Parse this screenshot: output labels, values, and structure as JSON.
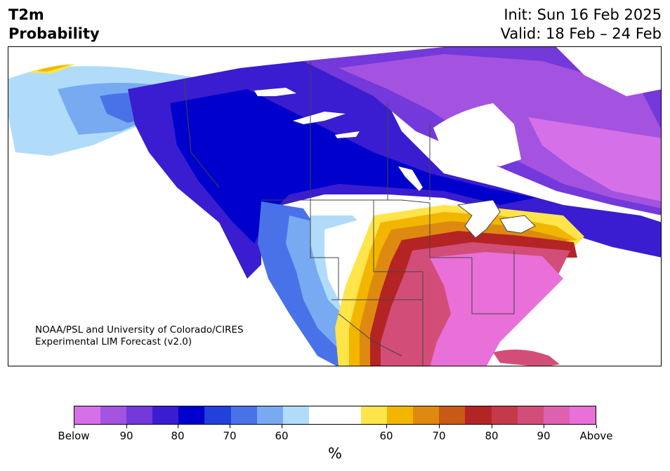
{
  "header": {
    "variable": "T2m",
    "product": "Probability",
    "init": "Init: Sun 16 Feb 2025",
    "valid": "Valid: 18 Feb – 24 Feb"
  },
  "map": {
    "credit_line1": "NOAA/PSL and University of Colorado/CIRES",
    "credit_line2": "Experimental LIM Forecast (v2.0)"
  },
  "colorbar": {
    "unit": "%",
    "colors": [
      "#d670e8",
      "#a353e0",
      "#7339da",
      "#3a1dd0",
      "#0000cc",
      "#2240dc",
      "#4a72e8",
      "#78aaf2",
      "#b0dcfa",
      "#ffffff",
      "#ffffff",
      "#ffe44a",
      "#f2b600",
      "#de8a10",
      "#c85a16",
      "#b42424",
      "#c43a4a",
      "#d24e78",
      "#de60b0",
      "#e870d8"
    ],
    "tick_labels": [
      "Below",
      "90",
      "80",
      "70",
      "60",
      "60",
      "70",
      "80",
      "90",
      "Above"
    ]
  }
}
